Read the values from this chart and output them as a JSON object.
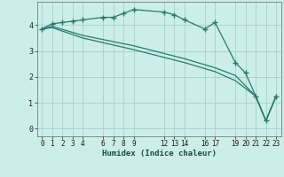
{
  "xlabel": "Humidex (Indice chaleur)",
  "background_color": "#cceee8",
  "grid_color": "#aad4cc",
  "line_color": "#267a6e",
  "xlim": [
    -0.5,
    23.5
  ],
  "ylim": [
    -0.3,
    4.9
  ],
  "xticks": [
    0,
    1,
    2,
    3,
    4,
    6,
    7,
    8,
    9,
    12,
    13,
    14,
    16,
    17,
    19,
    20,
    21,
    22,
    23
  ],
  "yticks": [
    0,
    1,
    2,
    3,
    4
  ],
  "series": [
    {
      "x": [
        0,
        1,
        2,
        3,
        4,
        6,
        7,
        8,
        9,
        12,
        13,
        14,
        16,
        17,
        19,
        20,
        21,
        22,
        23
      ],
      "y": [
        3.85,
        4.05,
        4.1,
        4.15,
        4.2,
        4.3,
        4.3,
        4.45,
        4.6,
        4.5,
        4.4,
        4.2,
        3.85,
        4.1,
        2.55,
        2.15,
        1.25,
        0.3,
        1.25
      ],
      "marker": true
    },
    {
      "x": [
        0,
        1,
        4,
        9,
        14,
        17,
        19,
        21,
        22,
        23
      ],
      "y": [
        3.85,
        3.95,
        3.6,
        3.2,
        2.7,
        2.35,
        2.05,
        1.25,
        0.3,
        1.25
      ],
      "marker": false
    },
    {
      "x": [
        0,
        1,
        4,
        9,
        14,
        17,
        19,
        21,
        22,
        23
      ],
      "y": [
        3.85,
        3.9,
        3.5,
        3.05,
        2.55,
        2.2,
        1.85,
        1.25,
        0.3,
        1.25
      ],
      "marker": false
    }
  ]
}
